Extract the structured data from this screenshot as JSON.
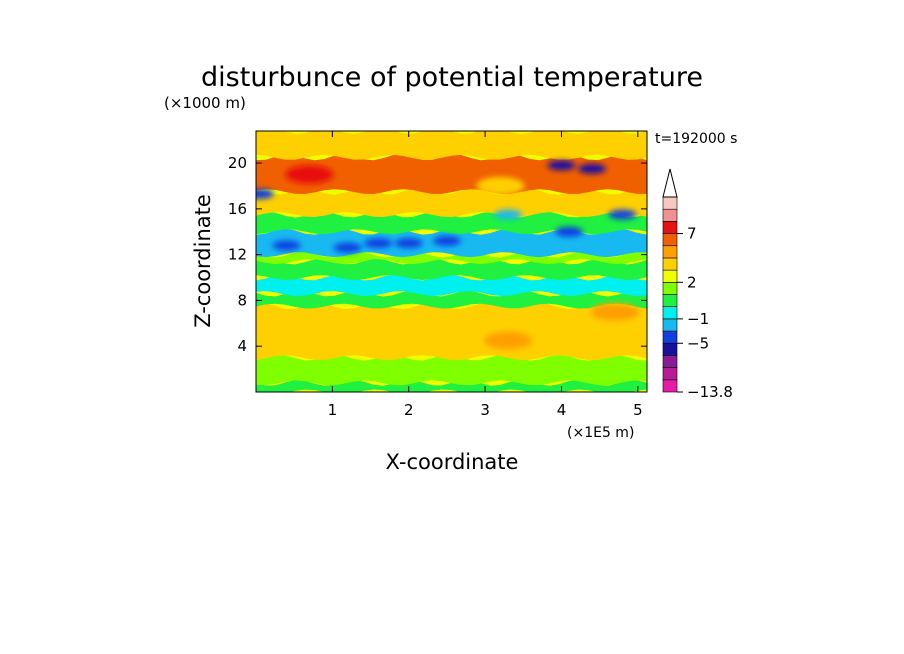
{
  "chart_data": {
    "type": "heatmap",
    "title": "disturbunce of potential temperature",
    "xlabel": "X-coordinate",
    "ylabel": "Z-coordinate",
    "x_unit": "(×1E5 m)",
    "y_unit": "(×1000 m)",
    "time_label": "t=192000 s",
    "xlim": [
      0,
      5.12
    ],
    "ylim": [
      0,
      22.8
    ],
    "x_ticks": [
      1,
      2,
      3,
      4,
      5
    ],
    "x_tick_labels": [
      "1",
      "2",
      "3",
      "4",
      "5"
    ],
    "y_ticks": [
      4,
      8,
      12,
      16,
      20
    ],
    "y_tick_labels": [
      "4",
      "8",
      "12",
      "16",
      "20"
    ],
    "colorbar": {
      "min": -13.8,
      "labels": [
        {
          "text": "7",
          "value": 7
        },
        {
          "text": "2",
          "value": 2
        },
        {
          "text": "−1",
          "value": -1
        },
        {
          "text": "−5",
          "value": -5
        },
        {
          "text": "−13.8",
          "value": -13.8
        }
      ],
      "colors": [
        "#e81aa8",
        "#b81a98",
        "#8a1a96",
        "#1a10a0",
        "#1040e0",
        "#18b8f0",
        "#00f0f0",
        "#20f040",
        "#80ff00",
        "#f0ff00",
        "#ffd000",
        "#ffa000",
        "#f06000",
        "#e81010",
        "#f09090",
        "#f8c8c0"
      ],
      "extend": "max"
    },
    "bands": [
      {
        "z": [
          0,
          0.8
        ],
        "value": 0.5
      },
      {
        "z": [
          0.8,
          3
        ],
        "value": 1.5
      },
      {
        "z": [
          3,
          7.5
        ],
        "value": 3
      },
      {
        "z": [
          7.5,
          8.6
        ],
        "value": 0.8
      },
      {
        "z": [
          8.6,
          10
        ],
        "value": -0.8
      },
      {
        "z": [
          10,
          11.4
        ],
        "value": 0.3
      },
      {
        "z": [
          11.4,
          12
        ],
        "value": 1.2
      },
      {
        "z": [
          12,
          14
        ],
        "value": -2
      },
      {
        "z": [
          14,
          15.5
        ],
        "value": 0.5
      },
      {
        "z": [
          15.5,
          17.5
        ],
        "value": 3
      },
      {
        "z": [
          17.5,
          20.5
        ],
        "value": 5
      },
      {
        "z": [
          20.5,
          22.8
        ],
        "value": 3
      }
    ],
    "cold_cells": [
      {
        "x": 0.4,
        "z": 12.8,
        "value": -4
      },
      {
        "x": 1.2,
        "z": 12.6,
        "value": -4
      },
      {
        "x": 1.6,
        "z": 13.0,
        "value": -5
      },
      {
        "x": 2.0,
        "z": 13.0,
        "value": -5
      },
      {
        "x": 2.5,
        "z": 13.2,
        "value": -5
      },
      {
        "x": 3.3,
        "z": 15.5,
        "value": -3
      },
      {
        "x": 4.0,
        "z": 19.8,
        "value": -6
      },
      {
        "x": 4.4,
        "z": 19.5,
        "value": -6
      },
      {
        "x": 4.1,
        "z": 14.0,
        "value": -4
      },
      {
        "x": 4.8,
        "z": 15.5,
        "value": -4
      },
      {
        "x": 0.05,
        "z": 17.3,
        "value": -4
      }
    ],
    "warm_cells": [
      {
        "x": 0.7,
        "z": 19.0,
        "value": 7
      },
      {
        "x": 3.2,
        "z": 18.0,
        "value": 3
      },
      {
        "x": 3.3,
        "z": 4.5,
        "value": 4
      },
      {
        "x": 4.7,
        "z": 7.0,
        "value": 4
      }
    ]
  }
}
